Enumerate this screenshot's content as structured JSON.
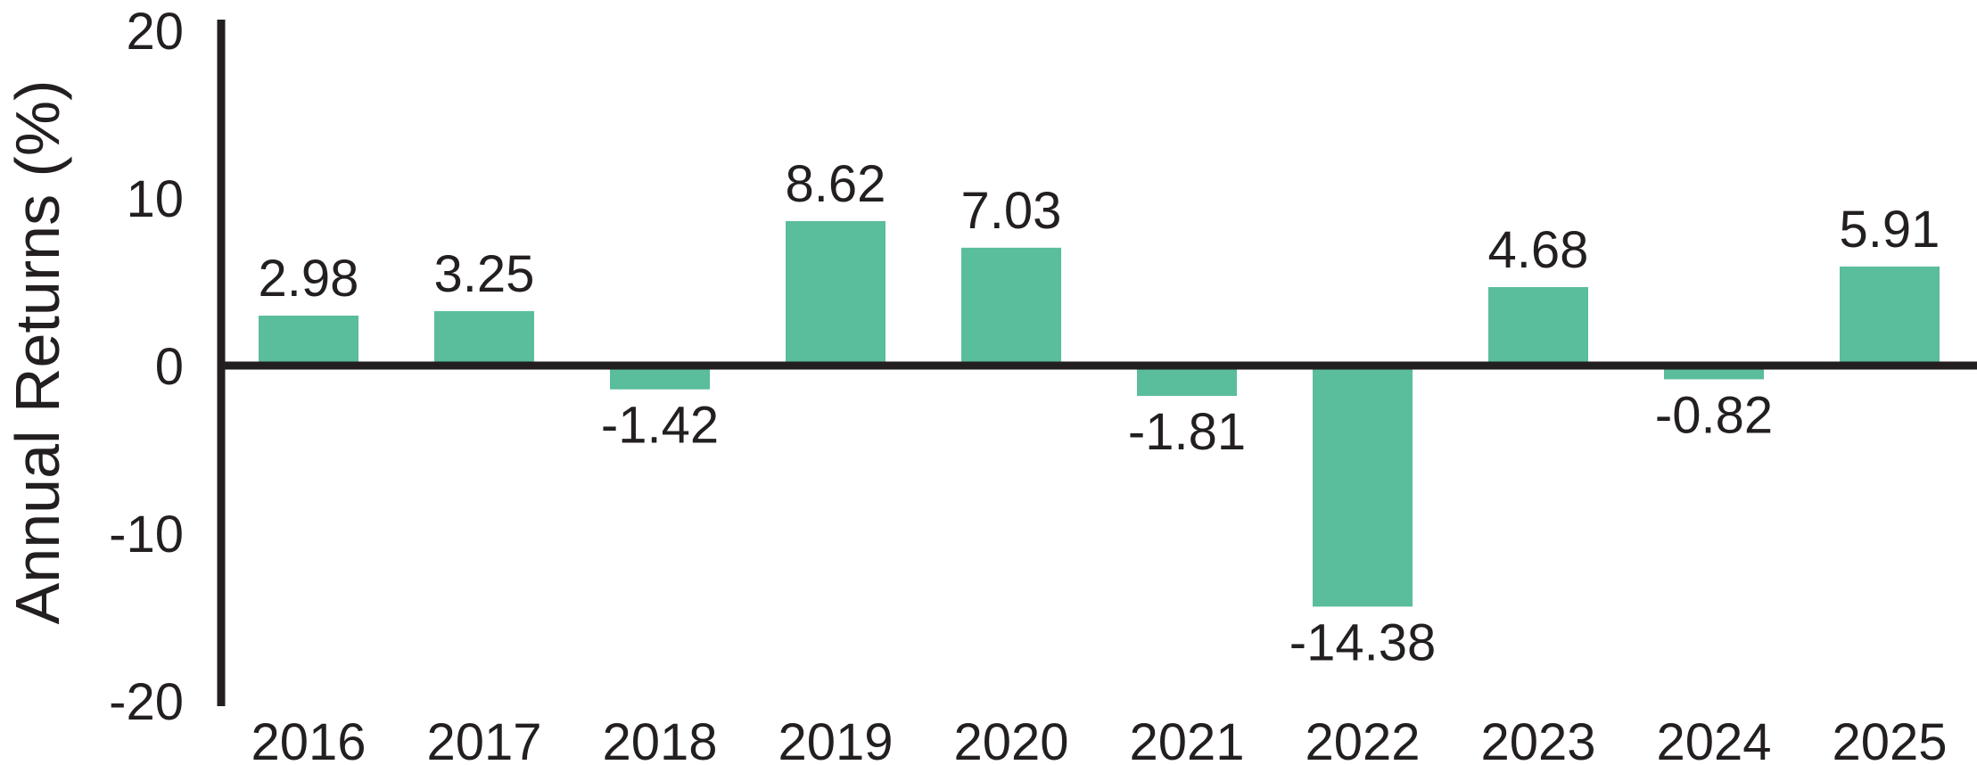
{
  "figure": {
    "background": "#FFFFFF"
  },
  "chart_data": {
    "type": "bar",
    "title": "",
    "xlabel": "",
    "ylabel": "Annual Returns (%)",
    "categories": [
      "2016",
      "2017",
      "2018",
      "2019",
      "2020",
      "2021",
      "2022",
      "2023",
      "2024",
      "2025"
    ],
    "values": [
      2.98,
      3.25,
      -1.42,
      8.62,
      7.03,
      -1.81,
      -14.38,
      4.68,
      -0.82,
      5.91
    ],
    "value_labels": [
      "2.98",
      "3.25",
      "-1.42",
      "8.62",
      "7.03",
      "-1.81",
      "-14.38",
      "4.68",
      "-0.82",
      "5.91"
    ],
    "ylim": [
      -20,
      20
    ],
    "yticks": [
      20,
      10,
      0,
      -10,
      -20
    ],
    "grid": false,
    "legend": "none",
    "bar_color": "#5ABD9B",
    "axis_color": "#231F20",
    "text_color": "#231F20"
  }
}
